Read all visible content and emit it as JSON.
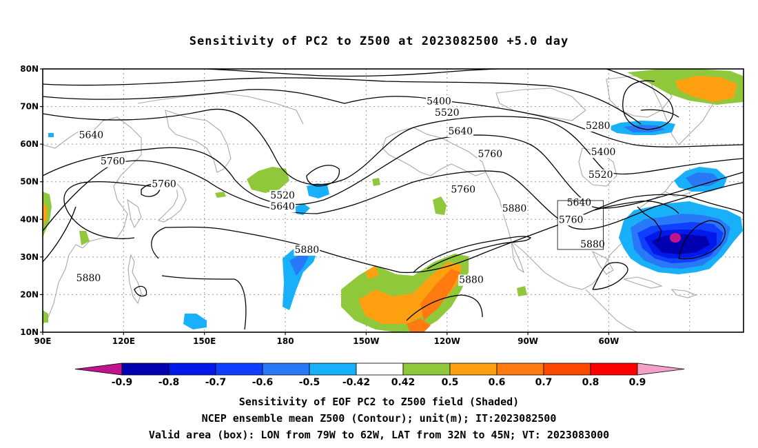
{
  "title": "Sensitivity of PC2 to Z500 at 2023082500 +5.0 day",
  "lat_labels": [
    "80N",
    "70N",
    "60N",
    "50N",
    "40N",
    "30N",
    "20N",
    "10N"
  ],
  "lon_labels": [
    "90E",
    "120E",
    "150E",
    "180",
    "150W",
    "120W",
    "90W",
    "60W"
  ],
  "contour_labels": [
    {
      "text": "5400",
      "lon": 237,
      "lat": 71.5
    },
    {
      "text": "5520",
      "lon": 240,
      "lat": 68.5
    },
    {
      "text": "5640",
      "lon": 245,
      "lat": 63.5
    },
    {
      "text": "5760",
      "lon": 256,
      "lat": 57.5
    },
    {
      "text": "5280",
      "lon": 296,
      "lat": 65
    },
    {
      "text": "5400",
      "lon": 298,
      "lat": 58
    },
    {
      "text": "5520",
      "lon": 297,
      "lat": 52
    },
    {
      "text": "5640",
      "lon": 289,
      "lat": 44.5
    },
    {
      "text": "5760",
      "lon": 286,
      "lat": 40
    },
    {
      "text": "5880",
      "lon": 294,
      "lat": 33.5
    },
    {
      "text": "5880",
      "lon": 265,
      "lat": 43
    },
    {
      "text": "5760",
      "lon": 246,
      "lat": 48
    },
    {
      "text": "5880",
      "lon": 249,
      "lat": 24
    },
    {
      "text": "5880",
      "lon": 188,
      "lat": 32
    },
    {
      "text": "5880",
      "lon": 107,
      "lat": 24.5
    },
    {
      "text": "5640",
      "lon": 108,
      "lat": 62.5
    },
    {
      "text": "5760",
      "lon": 116,
      "lat": 55.5
    },
    {
      "text": "5760",
      "lon": 135,
      "lat": 49.5
    },
    {
      "text": "5520",
      "lon": 179,
      "lat": 46.5
    },
    {
      "text": "5640",
      "lon": 179,
      "lat": 43.5
    }
  ],
  "colorbar": {
    "labels": [
      "-0.9",
      "-0.8",
      "-0.7",
      "-0.6",
      "-0.5",
      "-0.42",
      "0.42",
      "0.5",
      "0.6",
      "0.7",
      "0.8",
      "0.9"
    ],
    "colors": [
      "#0000b0",
      "#0018e8",
      "#1040ff",
      "#2878f8",
      "#18b0f8",
      "#ffffff",
      "#90c83c",
      "#ffa010",
      "#ff7a10",
      "#ff4800",
      "#ff0000"
    ],
    "low_color": "#c0148c",
    "high_color": "#f4a0c8"
  },
  "caption": [
    "Sensitivity of EOF PC2 to Z500 field (Shaded)",
    "NCEP ensemble mean Z500 (Contour); unit(m); IT:2023082500",
    "Valid area (box): LON from 79W to 62W, LAT from 32N to 45N; VT: 2023083000"
  ],
  "valid_box": {
    "lon_min": -79,
    "lon_max": -62,
    "lat_min": 32,
    "lat_max": 45
  }
}
